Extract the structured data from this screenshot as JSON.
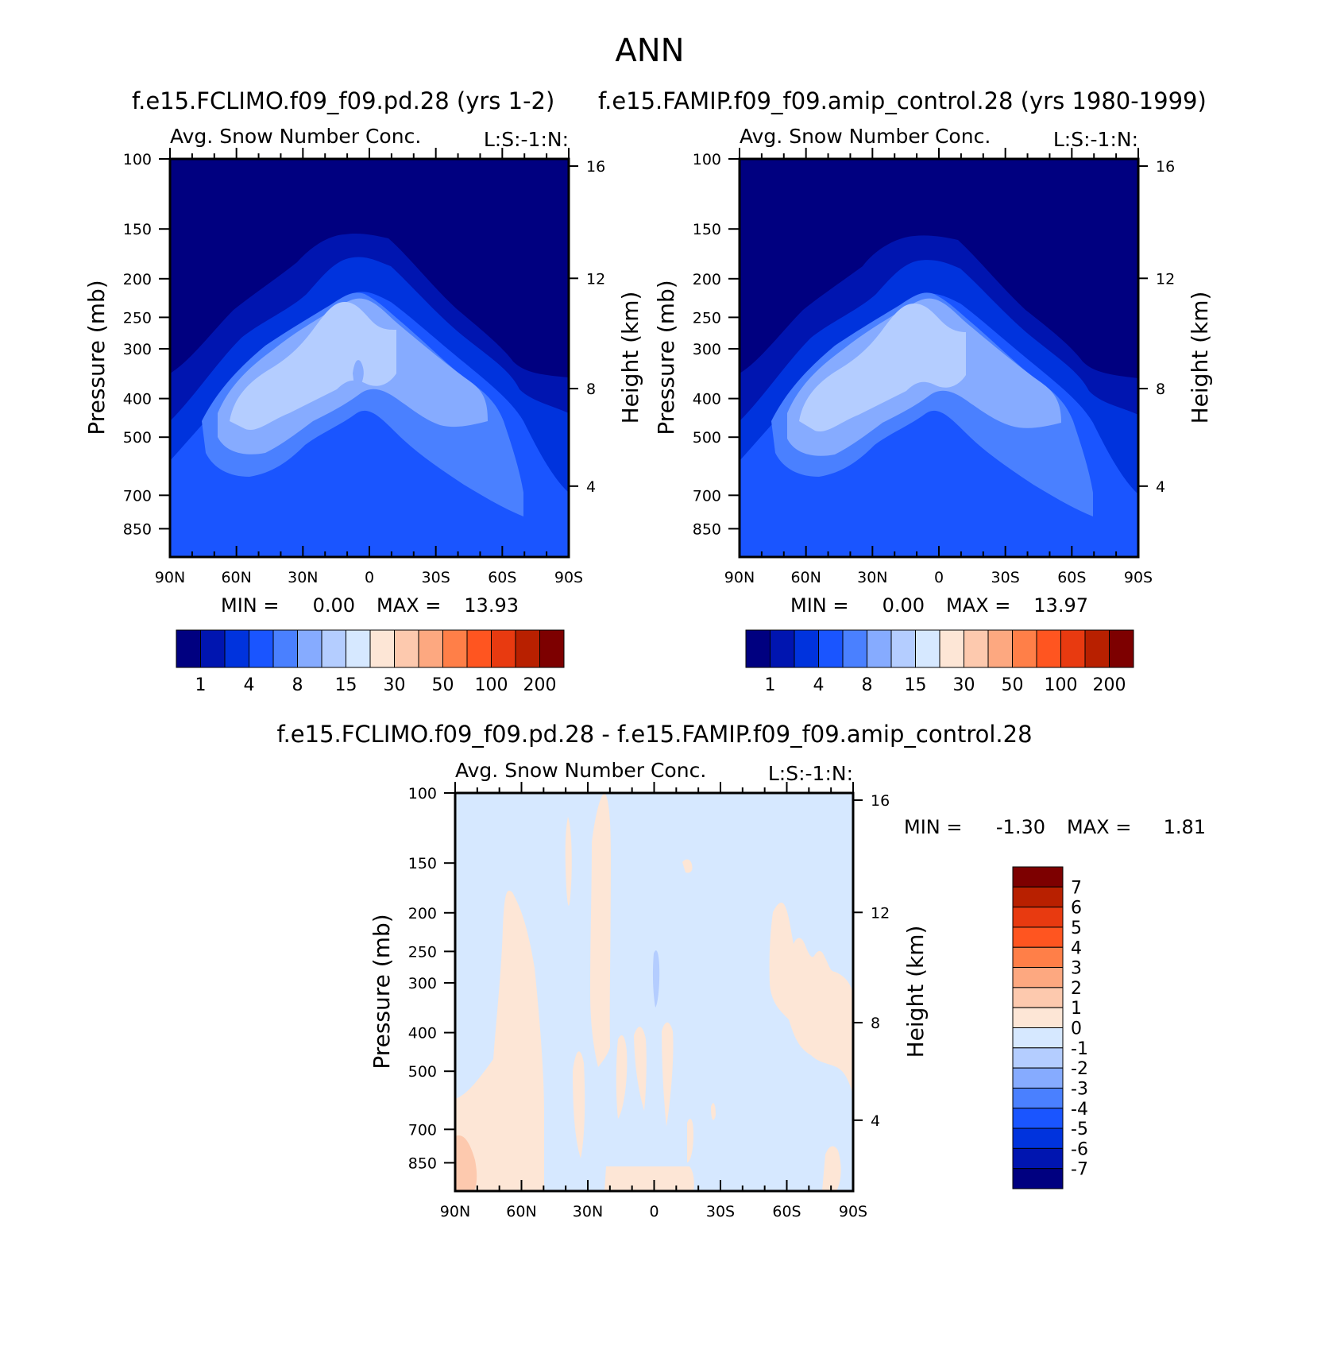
{
  "page_title": "ANN",
  "chart_data": [
    {
      "id": "panel1",
      "type": "heatmap",
      "case_title": "f.e15.FCLIMO.f09_f09.pd.28 (yrs 1-2)",
      "title": "Avg. Snow Number Conc.",
      "units": "L:S:-1:N:",
      "ylabel": "Pressure (mb)",
      "y2label": "Height (km)",
      "x_ticks": [
        "90N",
        "60N",
        "30N",
        "0",
        "30S",
        "60S",
        "90S"
      ],
      "y_ticks": [
        "100",
        "150",
        "200",
        "250",
        "300",
        "400",
        "500",
        "700",
        "850"
      ],
      "y2_ticks": [
        "16",
        "12",
        "8",
        "4"
      ],
      "min_label": "MIN =",
      "min_value": "0.00",
      "max_label": "MAX =",
      "max_value": "13.93",
      "levels": [
        "1",
        "4",
        "8",
        "15",
        "30",
        "50",
        "100",
        "200"
      ]
    },
    {
      "id": "panel2",
      "type": "heatmap",
      "case_title": "f.e15.FAMIP.f09_f09.amip_control.28 (yrs 1980-1999)",
      "title": "Avg. Snow Number Conc.",
      "units": "L:S:-1:N:",
      "ylabel": "Pressure (mb)",
      "y2label": "Height (km)",
      "x_ticks": [
        "90N",
        "60N",
        "30N",
        "0",
        "30S",
        "60S",
        "90S"
      ],
      "y_ticks": [
        "100",
        "150",
        "200",
        "250",
        "300",
        "400",
        "500",
        "700",
        "850"
      ],
      "y2_ticks": [
        "16",
        "12",
        "8",
        "4"
      ],
      "min_label": "MIN =",
      "min_value": "0.00",
      "max_label": "MAX =",
      "max_value": "13.97",
      "levels": [
        "1",
        "4",
        "8",
        "15",
        "30",
        "50",
        "100",
        "200"
      ]
    },
    {
      "id": "panel3",
      "type": "heatmap",
      "case_title": "f.e15.FCLIMO.f09_f09.pd.28 - f.e15.FAMIP.f09_f09.amip_control.28",
      "title": "Avg. Snow Number Conc.",
      "units": "L:S:-1:N:",
      "ylabel": "Pressure (mb)",
      "y2label": "Height (km)",
      "x_ticks": [
        "90N",
        "60N",
        "30N",
        "0",
        "30S",
        "60S",
        "90S"
      ],
      "y_ticks": [
        "100",
        "150",
        "200",
        "250",
        "300",
        "400",
        "500",
        "700",
        "850"
      ],
      "y2_ticks": [
        "16",
        "12",
        "8",
        "4"
      ],
      "min_label": "MIN =",
      "min_value": "-1.30",
      "max_label": "MAX =",
      "max_value": "1.81",
      "levels": [
        "7",
        "6",
        "5",
        "4",
        "3",
        "2",
        "1",
        "0",
        "-1",
        "-2",
        "-3",
        "-4",
        "-5",
        "-6",
        "-7"
      ]
    }
  ],
  "colors": {
    "abs_scale": [
      "#000080",
      "#0015b0",
      "#0033dd",
      "#1a55ff",
      "#4a80ff",
      "#86abff",
      "#b4cdff",
      "#d6e8ff",
      "#fde6d6",
      "#fdc9ae",
      "#fda880",
      "#ff7f48",
      "#ff5520",
      "#e83a10",
      "#b82000",
      "#7d0000"
    ],
    "diff_scale": [
      "#7d0000",
      "#b82000",
      "#e83a10",
      "#ff5520",
      "#ff7f48",
      "#fda880",
      "#fdc9ae",
      "#fde6d6",
      "#d6e8ff",
      "#b4cdff",
      "#86abff",
      "#4a80ff",
      "#1a55ff",
      "#0033dd",
      "#0015b0",
      "#000080"
    ]
  }
}
